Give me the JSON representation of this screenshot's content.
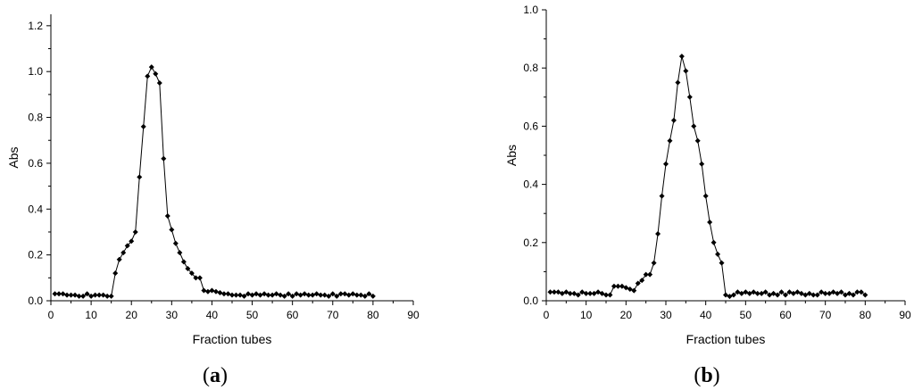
{
  "chart_data": [
    {
      "type": "line",
      "panel_label": "a",
      "xlabel": "Fraction tubes",
      "ylabel": "Abs",
      "xlim": [
        0,
        90
      ],
      "ylim": [
        0,
        1.25
      ],
      "xticks": [
        "0",
        "10",
        "20",
        "30",
        "40",
        "50",
        "60",
        "70",
        "80",
        "90"
      ],
      "yticks": [
        "0.0",
        "0.2",
        "0.4",
        "0.6",
        "0.8",
        "1.0",
        "1.2"
      ],
      "ytick_values": [
        0,
        0.2,
        0.4,
        0.6,
        0.8,
        1.0,
        1.2
      ],
      "grid": false,
      "series": [
        {
          "marker": "diamond",
          "x": [
            1,
            2,
            3,
            4,
            5,
            6,
            7,
            8,
            9,
            10,
            11,
            12,
            13,
            14,
            15,
            16,
            17,
            18,
            19,
            20,
            21,
            22,
            23,
            24,
            25,
            26,
            27,
            28,
            29,
            30,
            31,
            32,
            33,
            34,
            35,
            36,
            37,
            38,
            39,
            40,
            41,
            42,
            43,
            44,
            45,
            46,
            47,
            48,
            49,
            50,
            51,
            52,
            53,
            54,
            55,
            56,
            57,
            58,
            59,
            60,
            61,
            62,
            63,
            64,
            65,
            66,
            67,
            68,
            69,
            70,
            71,
            72,
            73,
            74,
            75,
            76,
            77,
            78,
            79,
            80
          ],
          "y": [
            0.03,
            0.03,
            0.03,
            0.025,
            0.025,
            0.025,
            0.02,
            0.02,
            0.03,
            0.02,
            0.025,
            0.025,
            0.025,
            0.02,
            0.02,
            0.12,
            0.18,
            0.21,
            0.24,
            0.26,
            0.3,
            0.54,
            0.76,
            0.98,
            1.02,
            0.99,
            0.95,
            0.62,
            0.37,
            0.31,
            0.25,
            0.21,
            0.17,
            0.14,
            0.12,
            0.1,
            0.1,
            0.045,
            0.04,
            0.045,
            0.04,
            0.035,
            0.03,
            0.03,
            0.025,
            0.025,
            0.025,
            0.02,
            0.03,
            0.025,
            0.03,
            0.025,
            0.03,
            0.025,
            0.025,
            0.03,
            0.025,
            0.02,
            0.03,
            0.02,
            0.03,
            0.025,
            0.03,
            0.025,
            0.025,
            0.03,
            0.025,
            0.025,
            0.02,
            0.03,
            0.02,
            0.03,
            0.03,
            0.025,
            0.03,
            0.025,
            0.025,
            0.02,
            0.03,
            0.02
          ]
        }
      ]
    },
    {
      "type": "line",
      "panel_label": "b",
      "xlabel": "Fraction tubes",
      "ylabel": "Abs",
      "xlim": [
        0,
        90
      ],
      "ylim": [
        0,
        1.0
      ],
      "xticks": [
        "0",
        "10",
        "20",
        "30",
        "40",
        "50",
        "60",
        "70",
        "80",
        "90"
      ],
      "yticks": [
        "0.0",
        "0.2",
        "0.4",
        "0.6",
        "0.8",
        "1.0"
      ],
      "ytick_values": [
        0,
        0.2,
        0.4,
        0.6,
        0.8,
        1.0
      ],
      "grid": false,
      "series": [
        {
          "marker": "diamond",
          "x": [
            1,
            2,
            3,
            4,
            5,
            6,
            7,
            8,
            9,
            10,
            11,
            12,
            13,
            14,
            15,
            16,
            17,
            18,
            19,
            20,
            21,
            22,
            23,
            24,
            25,
            26,
            27,
            28,
            29,
            30,
            31,
            32,
            33,
            34,
            35,
            36,
            37,
            38,
            39,
            40,
            41,
            42,
            43,
            44,
            45,
            46,
            47,
            48,
            49,
            50,
            51,
            52,
            53,
            54,
            55,
            56,
            57,
            58,
            59,
            60,
            61,
            62,
            63,
            64,
            65,
            66,
            67,
            68,
            69,
            70,
            71,
            72,
            73,
            74,
            75,
            76,
            77,
            78,
            79,
            80
          ],
          "y": [
            0.03,
            0.03,
            0.03,
            0.025,
            0.03,
            0.025,
            0.025,
            0.02,
            0.03,
            0.025,
            0.025,
            0.025,
            0.03,
            0.025,
            0.02,
            0.02,
            0.05,
            0.05,
            0.05,
            0.045,
            0.04,
            0.035,
            0.06,
            0.07,
            0.09,
            0.09,
            0.13,
            0.23,
            0.36,
            0.47,
            0.55,
            0.62,
            0.75,
            0.84,
            0.79,
            0.7,
            0.6,
            0.55,
            0.47,
            0.36,
            0.27,
            0.2,
            0.16,
            0.13,
            0.02,
            0.015,
            0.02,
            0.03,
            0.025,
            0.03,
            0.025,
            0.03,
            0.025,
            0.025,
            0.03,
            0.02,
            0.025,
            0.02,
            0.03,
            0.02,
            0.03,
            0.025,
            0.03,
            0.025,
            0.02,
            0.025,
            0.02,
            0.02,
            0.03,
            0.025,
            0.025,
            0.03,
            0.025,
            0.03,
            0.02,
            0.025,
            0.02,
            0.03,
            0.03,
            0.02
          ]
        }
      ]
    }
  ]
}
